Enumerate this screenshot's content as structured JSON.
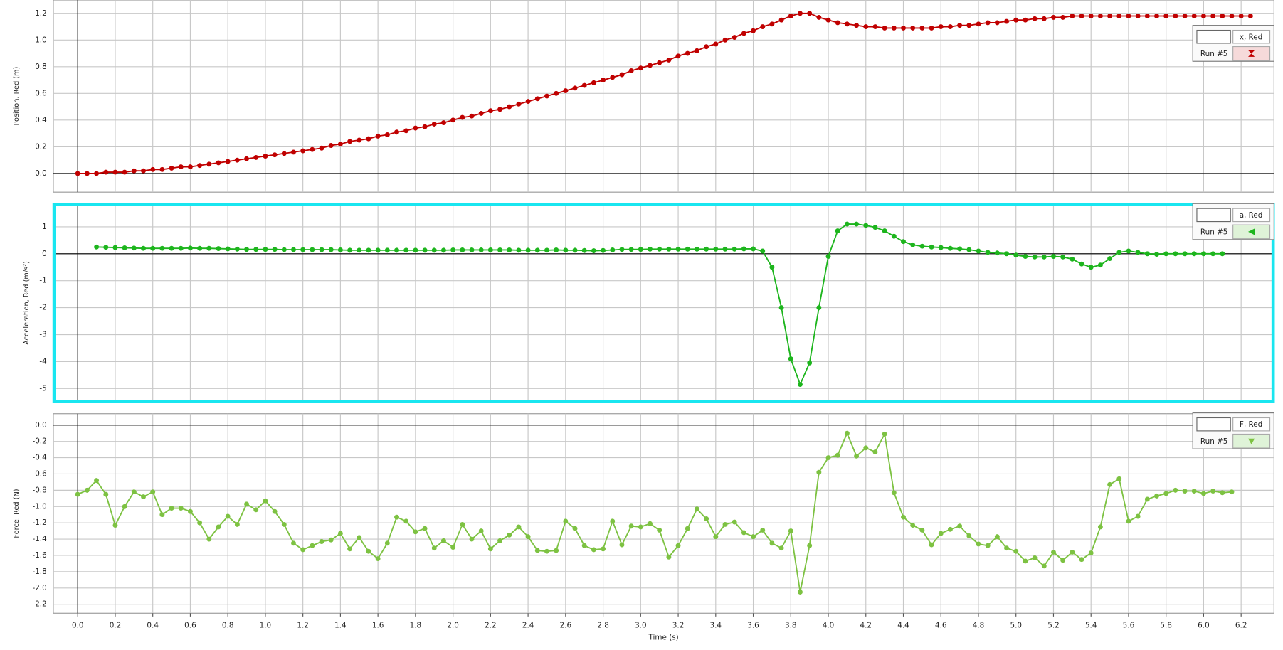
{
  "chart_data": [
    {
      "type": "line",
      "ylabel": "Position, Red (m)",
      "legend": "top-right",
      "grid": true,
      "ylim": [
        -0.14,
        1.3
      ],
      "yticks": [
        {
          "value": 0,
          "label": "0.0"
        },
        0.2,
        0.4,
        0.6,
        0.8,
        {
          "value": 1,
          "label": "1.0"
        },
        1.2
      ],
      "x": [
        0,
        0.05,
        0.1,
        0.15,
        0.2,
        0.25,
        0.3,
        0.35,
        0.4,
        0.45,
        0.5,
        0.55,
        0.6,
        0.65,
        0.7,
        0.75,
        0.8,
        0.85,
        0.9,
        0.95,
        1,
        1.05,
        1.1,
        1.15,
        1.2,
        1.25,
        1.3,
        1.35,
        1.4,
        1.45,
        1.5,
        1.55,
        1.6,
        1.65,
        1.7,
        1.75,
        1.8,
        1.85,
        1.9,
        1.95,
        2,
        2.05,
        2.1,
        2.15,
        2.2,
        2.25,
        2.3,
        2.35,
        2.4,
        2.45,
        2.5,
        2.55,
        2.6,
        2.65,
        2.7,
        2.75,
        2.8,
        2.85,
        2.9,
        2.95,
        3,
        3.05,
        3.1,
        3.15,
        3.2,
        3.25,
        3.3,
        3.35,
        3.4,
        3.45,
        3.5,
        3.55,
        3.6,
        3.65,
        3.7,
        3.75,
        3.8,
        3.85,
        3.9,
        3.95,
        4,
        4.05,
        4.1,
        4.15,
        4.2,
        4.25,
        4.3,
        4.35,
        4.4,
        4.45,
        4.5,
        4.55,
        4.6,
        4.65,
        4.7,
        4.75,
        4.8,
        4.85,
        4.9,
        4.95,
        5,
        5.05,
        5.1,
        5.15,
        5.2,
        5.25,
        5.3,
        5.35,
        5.4,
        5.45,
        5.5,
        5.55,
        5.6,
        5.65,
        5.7,
        5.75,
        5.8,
        5.85,
        5.9,
        5.95,
        6,
        6.05,
        6.1,
        6.15,
        6.2,
        6.25
      ],
      "series": [
        {
          "name": "x, Red",
          "run": "Run #5",
          "color": "#c00000",
          "values": [
            0,
            0,
            0,
            0.01,
            0.01,
            0.01,
            0.02,
            0.02,
            0.03,
            0.03,
            0.04,
            0.05,
            0.05,
            0.06,
            0.07,
            0.08,
            0.09,
            0.1,
            0.11,
            0.12,
            0.13,
            0.14,
            0.15,
            0.16,
            0.17,
            0.18,
            0.19,
            0.21,
            0.22,
            0.24,
            0.25,
            0.26,
            0.28,
            0.29,
            0.31,
            0.32,
            0.34,
            0.35,
            0.37,
            0.38,
            0.4,
            0.42,
            0.43,
            0.45,
            0.47,
            0.48,
            0.5,
            0.52,
            0.54,
            0.56,
            0.58,
            0.6,
            0.62,
            0.64,
            0.66,
            0.68,
            0.7,
            0.72,
            0.74,
            0.77,
            0.79,
            0.81,
            0.83,
            0.85,
            0.88,
            0.9,
            0.92,
            0.95,
            0.97,
            1,
            1.02,
            1.05,
            1.07,
            1.1,
            1.12,
            1.15,
            1.18,
            1.2,
            1.2,
            1.17,
            1.15,
            1.13,
            1.12,
            1.11,
            1.1,
            1.1,
            1.09,
            1.09,
            1.09,
            1.09,
            1.09,
            1.09,
            1.1,
            1.1,
            1.11,
            1.11,
            1.12,
            1.13,
            1.13,
            1.14,
            1.15,
            1.15,
            1.16,
            1.16,
            1.17,
            1.17,
            1.18,
            1.18,
            1.18,
            1.18,
            1.18,
            1.18,
            1.18,
            1.18,
            1.18,
            1.18,
            1.18,
            1.18,
            1.18,
            1.18,
            1.18,
            1.18,
            1.18,
            1.18,
            1.18,
            1.18
          ]
        }
      ]
    },
    {
      "type": "line",
      "ylabel": "Acceleration, Red (m/s²)",
      "legend": "top-right",
      "grid": true,
      "ylim": [
        -5.45,
        1.8
      ],
      "yticks": [
        1,
        0,
        -1,
        -2,
        -3,
        -4,
        -5
      ],
      "x": [
        0.1,
        0.15,
        0.2,
        0.25,
        0.3,
        0.35,
        0.4,
        0.45,
        0.5,
        0.55,
        0.6,
        0.65,
        0.7,
        0.75,
        0.8,
        0.85,
        0.9,
        0.95,
        1,
        1.05,
        1.1,
        1.15,
        1.2,
        1.25,
        1.3,
        1.35,
        1.4,
        1.45,
        1.5,
        1.55,
        1.6,
        1.65,
        1.7,
        1.75,
        1.8,
        1.85,
        1.9,
        1.95,
        2,
        2.05,
        2.1,
        2.15,
        2.2,
        2.25,
        2.3,
        2.35,
        2.4,
        2.45,
        2.5,
        2.55,
        2.6,
        2.65,
        2.7,
        2.75,
        2.8,
        2.85,
        2.9,
        2.95,
        3,
        3.05,
        3.1,
        3.15,
        3.2,
        3.25,
        3.3,
        3.35,
        3.4,
        3.45,
        3.5,
        3.55,
        3.6,
        3.65,
        3.7,
        3.75,
        3.8,
        3.85,
        3.9,
        3.95,
        4,
        4.05,
        4.1,
        4.15,
        4.2,
        4.25,
        4.3,
        4.35,
        4.4,
        4.45,
        4.5,
        4.55,
        4.6,
        4.65,
        4.7,
        4.75,
        4.8,
        4.85,
        4.9,
        4.95,
        5,
        5.05,
        5.1,
        5.15,
        5.2,
        5.25,
        5.3,
        5.35,
        5.4,
        5.45,
        5.5,
        5.55,
        5.6,
        5.65,
        5.7,
        5.75,
        5.8,
        5.85,
        5.9,
        5.95,
        6,
        6.05,
        6.1
      ],
      "series": [
        {
          "name": "a, Red",
          "run": "Run #5",
          "color": "#1db51d",
          "values": [
            0.25,
            0.24,
            0.23,
            0.22,
            0.21,
            0.2,
            0.2,
            0.2,
            0.2,
            0.2,
            0.21,
            0.2,
            0.2,
            0.19,
            0.18,
            0.17,
            0.16,
            0.16,
            0.16,
            0.16,
            0.15,
            0.15,
            0.15,
            0.15,
            0.15,
            0.15,
            0.14,
            0.13,
            0.13,
            0.13,
            0.13,
            0.13,
            0.13,
            0.13,
            0.13,
            0.13,
            0.13,
            0.13,
            0.14,
            0.14,
            0.14,
            0.14,
            0.14,
            0.14,
            0.14,
            0.13,
            0.13,
            0.13,
            0.13,
            0.14,
            0.13,
            0.13,
            0.12,
            0.11,
            0.12,
            0.14,
            0.16,
            0.16,
            0.16,
            0.17,
            0.17,
            0.17,
            0.17,
            0.17,
            0.17,
            0.17,
            0.17,
            0.17,
            0.17,
            0.18,
            0.18,
            0.1,
            -0.5,
            -2,
            -3.9,
            -4.85,
            -4.05,
            -2,
            -0.1,
            0.85,
            1.1,
            1.1,
            1.05,
            0.98,
            0.85,
            0.65,
            0.45,
            0.33,
            0.28,
            0.25,
            0.23,
            0.2,
            0.18,
            0.15,
            0.1,
            0.05,
            0.03,
            0,
            -0.05,
            -0.1,
            -0.12,
            -0.12,
            -0.1,
            -0.12,
            -0.2,
            -0.38,
            -0.5,
            -0.42,
            -0.18,
            0.05,
            0.1,
            0.05,
            0,
            -0.02,
            0,
            0,
            0,
            0,
            0,
            0,
            0
          ]
        }
      ]
    },
    {
      "type": "line",
      "ylabel": "Force, Red (N)",
      "xlabel": "Time (s)",
      "legend": "top-right",
      "grid": true,
      "ylim": [
        -2.31,
        0.14
      ],
      "yticks": [
        {
          "value": 0,
          "label": "0.0"
        },
        -0.2,
        -0.4,
        -0.6,
        -0.8,
        {
          "value": -1,
          "label": "-1.0"
        },
        -1.2,
        -1.4,
        -1.6,
        -1.8,
        {
          "value": -2,
          "label": "-2.0"
        },
        -2.2
      ],
      "xlim": [
        -0.13,
        6.375
      ],
      "xticks": [
        {
          "value": 0,
          "label": "0.0"
        },
        0.2,
        0.4,
        0.6,
        0.8,
        {
          "value": 1,
          "label": "1.0"
        },
        1.2,
        1.4,
        1.6,
        1.8,
        {
          "value": 2,
          "label": "2.0"
        },
        2.2,
        2.4,
        2.6,
        2.8,
        {
          "value": 3,
          "label": "3.0"
        },
        3.2,
        3.4,
        3.6,
        3.8,
        {
          "value": 4,
          "label": "4.0"
        },
        4.2,
        4.4,
        4.6,
        4.8,
        {
          "value": 5,
          "label": "5.0"
        },
        5.2,
        5.4,
        5.6,
        5.8,
        {
          "value": 6,
          "label": "6.0"
        },
        6.2
      ],
      "x": [
        0,
        0.05,
        0.1,
        0.15,
        0.2,
        0.25,
        0.3,
        0.35,
        0.4,
        0.45,
        0.5,
        0.55,
        0.6,
        0.65,
        0.7,
        0.75,
        0.8,
        0.85,
        0.9,
        0.95,
        1,
        1.05,
        1.1,
        1.15,
        1.2,
        1.25,
        1.3,
        1.35,
        1.4,
        1.45,
        1.5,
        1.55,
        1.6,
        1.65,
        1.7,
        1.75,
        1.8,
        1.85,
        1.9,
        1.95,
        2,
        2.05,
        2.1,
        2.15,
        2.2,
        2.25,
        2.3,
        2.35,
        2.4,
        2.45,
        2.5,
        2.55,
        2.6,
        2.65,
        2.7,
        2.75,
        2.8,
        2.85,
        2.9,
        2.95,
        3,
        3.05,
        3.1,
        3.15,
        3.2,
        3.25,
        3.3,
        3.35,
        3.4,
        3.45,
        3.5,
        3.55,
        3.6,
        3.65,
        3.7,
        3.75,
        3.8,
        3.85,
        3.9,
        3.95,
        4,
        4.05,
        4.1,
        4.15,
        4.2,
        4.25,
        4.3,
        4.35,
        4.4,
        4.45,
        4.5,
        4.55,
        4.6,
        4.65,
        4.7,
        4.75,
        4.8,
        4.85,
        4.9,
        4.95,
        5,
        5.05,
        5.1,
        5.15,
        5.2,
        5.25,
        5.3,
        5.35,
        5.4,
        5.45,
        5.5,
        5.55,
        5.6,
        5.65,
        5.7,
        5.75,
        5.8,
        5.85,
        5.9,
        5.95,
        6,
        6.05,
        6.1,
        6.15
      ],
      "series": [
        {
          "name": "F, Red",
          "run": "Run #5",
          "color": "#7dc242",
          "values": [
            -0.85,
            -0.8,
            -0.68,
            -0.85,
            -1.23,
            -1,
            -0.82,
            -0.88,
            -0.82,
            -1.1,
            -1.02,
            -1.02,
            -1.06,
            -1.2,
            -1.4,
            -1.25,
            -1.12,
            -1.22,
            -0.97,
            -1.04,
            -0.93,
            -1.06,
            -1.22,
            -1.45,
            -1.53,
            -1.48,
            -1.43,
            -1.41,
            -1.33,
            -1.52,
            -1.38,
            -1.55,
            -1.64,
            -1.45,
            -1.13,
            -1.18,
            -1.31,
            -1.27,
            -1.51,
            -1.42,
            -1.5,
            -1.22,
            -1.4,
            -1.3,
            -1.52,
            -1.42,
            -1.35,
            -1.25,
            -1.37,
            -1.54,
            -1.55,
            -1.54,
            -1.18,
            -1.27,
            -1.48,
            -1.53,
            -1.52,
            -1.18,
            -1.47,
            -1.24,
            -1.25,
            -1.21,
            -1.29,
            -1.62,
            -1.48,
            -1.27,
            -1.03,
            -1.15,
            -1.37,
            -1.22,
            -1.19,
            -1.32,
            -1.37,
            -1.29,
            -1.45,
            -1.51,
            -1.3,
            -2.05,
            -1.48,
            -0.58,
            -0.4,
            -0.37,
            -0.1,
            -0.38,
            -0.28,
            -0.33,
            -0.11,
            -0.83,
            -1.13,
            -1.23,
            -1.29,
            -1.47,
            -1.33,
            -1.28,
            -1.24,
            -1.36,
            -1.46,
            -1.48,
            -1.37,
            -1.51,
            -1.55,
            -1.67,
            -1.63,
            -1.73,
            -1.56,
            -1.66,
            -1.56,
            -1.65,
            -1.57,
            -1.25,
            -0.73,
            -0.66,
            -1.18,
            -1.12,
            -0.91,
            -0.87,
            -0.84,
            -0.8,
            -0.81,
            -0.81,
            -0.84,
            -0.81,
            -0.83,
            -0.82
          ]
        }
      ]
    }
  ]
}
